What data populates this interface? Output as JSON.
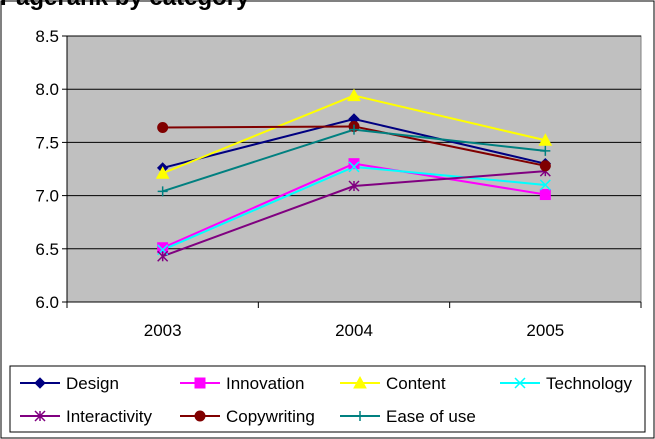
{
  "chart_data": {
    "type": "line",
    "title": "Pagerank by category",
    "categories": [
      "2003",
      "2004",
      "2005"
    ],
    "ylim": [
      6.0,
      8.5
    ],
    "yticks": [
      "6.0",
      "6.5",
      "7.0",
      "7.5",
      "8.0",
      "8.5"
    ],
    "grid": true,
    "legend_position": "bottom",
    "series": [
      {
        "name": "Design",
        "values": [
          7.26,
          7.72,
          7.3
        ],
        "color": "#000080",
        "marker": "diamond"
      },
      {
        "name": "Innovation",
        "values": [
          6.51,
          7.3,
          7.01
        ],
        "color": "#ff00ff",
        "marker": "square"
      },
      {
        "name": "Content",
        "values": [
          7.21,
          7.94,
          7.52
        ],
        "color": "#ffff00",
        "marker": "triangle"
      },
      {
        "name": "Technology",
        "values": [
          6.49,
          7.27,
          7.1
        ],
        "color": "#00ffff",
        "marker": "x"
      },
      {
        "name": "Interactivity",
        "values": [
          6.43,
          7.09,
          7.23
        ],
        "color": "#800080",
        "marker": "star"
      },
      {
        "name": "Copywriting",
        "values": [
          7.64,
          7.65,
          7.28
        ],
        "color": "#800000",
        "marker": "circle"
      },
      {
        "name": "Ease of use",
        "values": [
          7.04,
          7.62,
          7.42
        ],
        "color": "#008080",
        "marker": "plus"
      }
    ]
  }
}
